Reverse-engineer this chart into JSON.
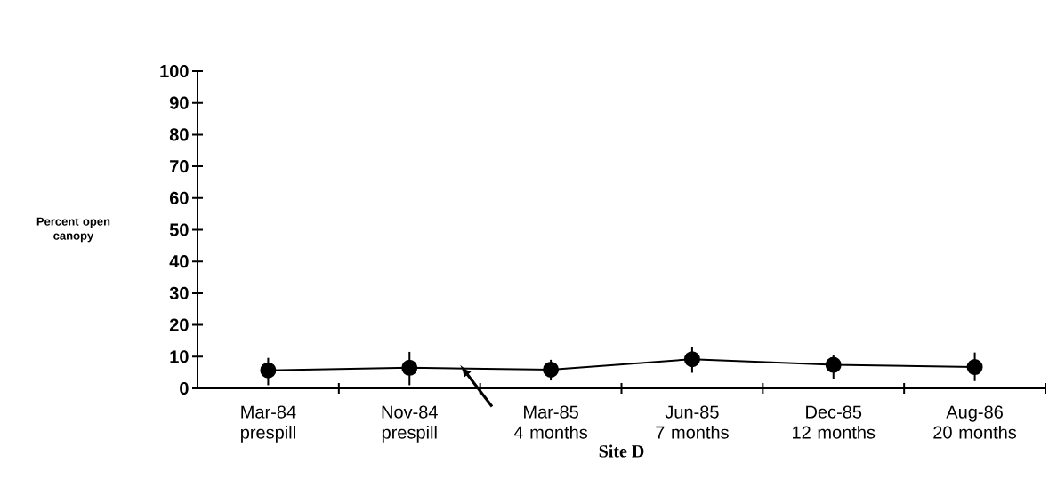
{
  "chart_data": {
    "type": "line",
    "xlabel": "Site D",
    "ylabel": "Percent open canopy",
    "categories": [
      "Mar-84\nprespill",
      "Nov-84\nprespill",
      "Mar-85\n4 months",
      "Jun-85\n7 months",
      "Dec-85\n12 months",
      "Aug-86\n20 months"
    ],
    "values": [
      5.7,
      6.5,
      5.9,
      9.2,
      7.4,
      6.7
    ],
    "errors": [
      [
        1,
        9.6
      ],
      [
        1,
        11.5
      ],
      [
        2.5,
        9.0
      ],
      [
        4.9,
        13.1
      ],
      [
        2.9,
        10.5
      ],
      [
        2.3,
        11.3
      ]
    ],
    "color": "#000000",
    "marker": "circle",
    "line_style": "solid",
    "ylim": [
      0,
      100
    ],
    "yticks": [
      0,
      10,
      20,
      30,
      40,
      50,
      60,
      70,
      80,
      90,
      100
    ],
    "grid": false
  }
}
